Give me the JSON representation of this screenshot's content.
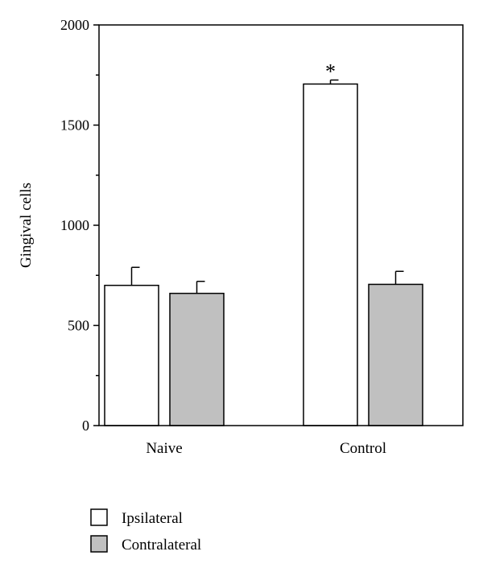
{
  "chart_data": {
    "type": "bar",
    "ylabel": "Gingival cells",
    "ylim": [
      0,
      2000
    ],
    "yticks": [
      0,
      500,
      1000,
      1500,
      2000
    ],
    "categories": [
      "Naive",
      "Control"
    ],
    "series": [
      {
        "name": "Ipsilateral",
        "color": "#ffffff",
        "values": [
          700,
          1705
        ],
        "errors": [
          90,
          20
        ]
      },
      {
        "name": "Contralateral",
        "color": "#c0c0c0",
        "values": [
          660,
          705
        ],
        "errors": [
          60,
          65
        ]
      }
    ],
    "annotations": [
      {
        "text": "*",
        "category": "Control",
        "series": "Ipsilateral"
      }
    ],
    "legend": {
      "position": "bottom-left"
    }
  }
}
